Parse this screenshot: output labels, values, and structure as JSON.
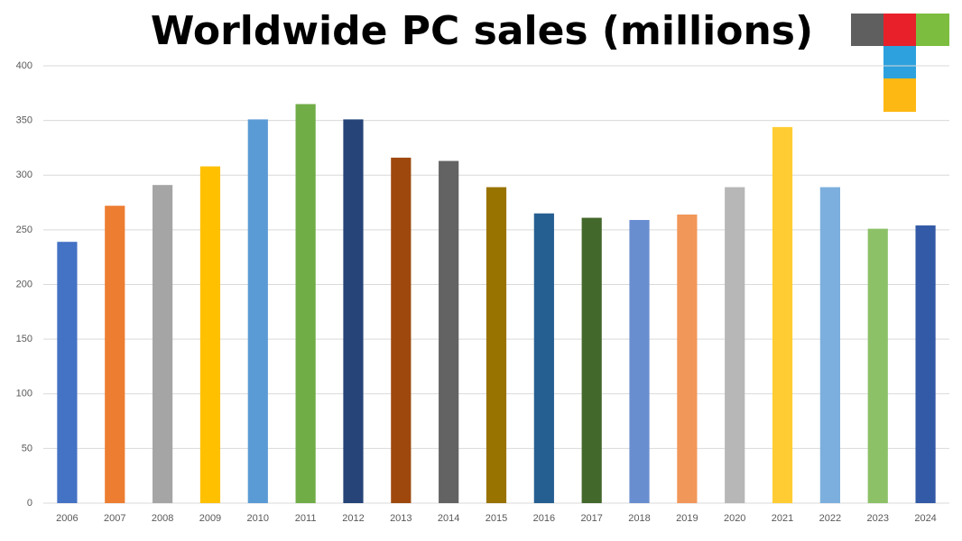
{
  "chart_data": {
    "type": "bar",
    "title": "Worldwide PC sales (millions)",
    "categories": [
      "2006",
      "2007",
      "2008",
      "2009",
      "2010",
      "2011",
      "2012",
      "2013",
      "2014",
      "2015",
      "2016",
      "2017",
      "2018",
      "2019",
      "2020",
      "2021",
      "2022",
      "2023",
      "2024"
    ],
    "values": [
      239,
      272,
      291,
      308,
      351,
      365,
      351,
      316,
      313,
      289,
      265,
      261,
      259,
      264,
      289,
      344,
      289,
      251,
      254
    ],
    "colors": [
      "#4472c4",
      "#ed7d31",
      "#a5a5a5",
      "#ffc000",
      "#5b9bd5",
      "#70ad47",
      "#264478",
      "#9e480e",
      "#636363",
      "#997300",
      "#255e91",
      "#43682b",
      "#698ed0",
      "#f1975a",
      "#b7b7b7",
      "#ffcd33",
      "#7cafdd",
      "#8cc168",
      "#335aa6"
    ],
    "ylim": [
      0,
      400
    ],
    "yticks": [
      0,
      50,
      100,
      150,
      200,
      250,
      300,
      350,
      400
    ],
    "grid": true
  }
}
